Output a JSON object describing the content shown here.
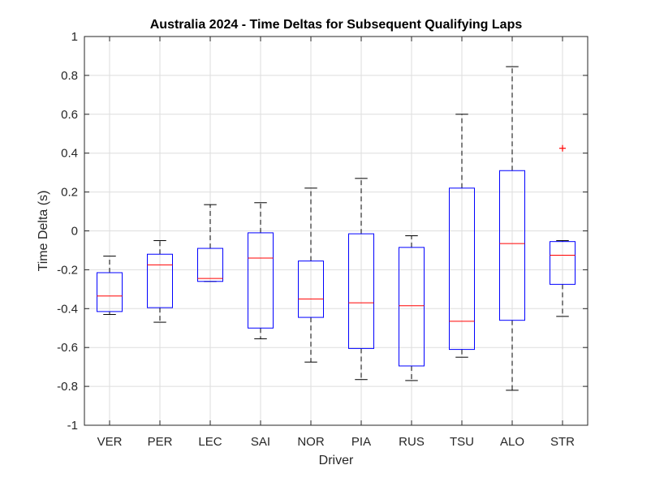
{
  "chart_data": {
    "type": "box",
    "title": "Australia 2024 - Time Deltas for Subsequent Qualifying Laps",
    "xlabel": "Driver",
    "ylabel": "Time Delta (s)",
    "ylim": [
      -1,
      1
    ],
    "yticks": [
      1,
      0.8,
      0.6,
      0.4,
      0.2,
      0,
      -0.2,
      -0.4,
      -0.6,
      -0.8,
      -1
    ],
    "ytick_labels": [
      "1",
      "0.8",
      "0.6",
      "0.4",
      "0.2",
      "0",
      "-0.2",
      "-0.4",
      "-0.6",
      "-0.8",
      "-1"
    ],
    "grid": true,
    "categories": [
      "VER",
      "PER",
      "LEC",
      "SAI",
      "NOR",
      "PIA",
      "RUS",
      "TSU",
      "ALO",
      "STR"
    ],
    "boxes": [
      {
        "label": "VER",
        "min": -0.43,
        "q1": -0.415,
        "median": -0.335,
        "q3": -0.215,
        "max": -0.13,
        "outliers": []
      },
      {
        "label": "PER",
        "min": -0.47,
        "q1": -0.395,
        "median": -0.175,
        "q3": -0.12,
        "max": -0.05,
        "outliers": []
      },
      {
        "label": "LEC",
        "min": -0.26,
        "q1": -0.26,
        "median": -0.245,
        "q3": -0.09,
        "max": 0.135,
        "outliers": []
      },
      {
        "label": "SAI",
        "min": -0.555,
        "q1": -0.5,
        "median": -0.14,
        "q3": -0.01,
        "max": 0.145,
        "outliers": []
      },
      {
        "label": "NOR",
        "min": -0.675,
        "q1": -0.445,
        "median": -0.35,
        "q3": -0.155,
        "max": 0.22,
        "outliers": []
      },
      {
        "label": "PIA",
        "min": -0.765,
        "q1": -0.605,
        "median": -0.37,
        "q3": -0.015,
        "max": 0.27,
        "outliers": []
      },
      {
        "label": "RUS",
        "min": -0.77,
        "q1": -0.695,
        "median": -0.385,
        "q3": -0.085,
        "max": -0.025,
        "outliers": []
      },
      {
        "label": "TSU",
        "min": -0.65,
        "q1": -0.61,
        "median": -0.465,
        "q3": 0.22,
        "max": 0.6,
        "outliers": []
      },
      {
        "label": "ALO",
        "min": -0.82,
        "q1": -0.46,
        "median": -0.065,
        "q3": 0.31,
        "max": 0.845,
        "outliers": []
      },
      {
        "label": "STR",
        "min": -0.44,
        "q1": -0.275,
        "median": -0.125,
        "q3": -0.055,
        "max": -0.05,
        "outliers": [
          0.425
        ]
      }
    ],
    "colors": {
      "box": "#0000ff",
      "median": "#ff0000",
      "whisker": "#000000",
      "outlier": "#ff0000",
      "grid": "#dedede",
      "axis": "#262626"
    }
  }
}
